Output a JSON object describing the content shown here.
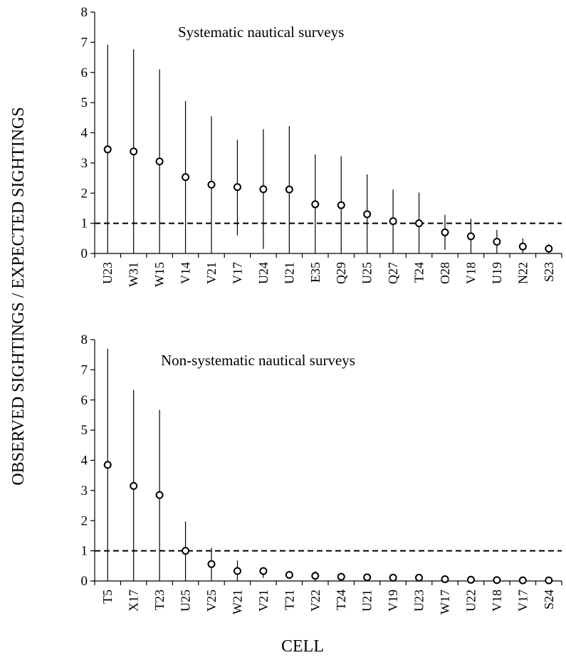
{
  "y_axis_title": "OBSERVED SIGHTINGS / EXPECTED SIGHTINGS",
  "x_axis_title": "CELL",
  "chart_data": [
    {
      "type": "scatter",
      "title": "Systematic nautical surveys",
      "ylim": [
        0,
        8
      ],
      "yticks": [
        0,
        1,
        2,
        3,
        4,
        5,
        6,
        7,
        8
      ],
      "reference_line": 1,
      "grid": false,
      "categories": [
        "U23",
        "W31",
        "W15",
        "V14",
        "V21",
        "V17",
        "U24",
        "U21",
        "E35",
        "Q29",
        "U25",
        "Q27",
        "T24",
        "O28",
        "V18",
        "U19",
        "N22",
        "S23"
      ],
      "values": [
        3.45,
        3.38,
        3.05,
        2.53,
        2.28,
        2.2,
        2.13,
        2.12,
        1.63,
        1.6,
        1.3,
        1.07,
        1.0,
        0.7,
        0.57,
        0.39,
        0.23,
        0.16
      ],
      "upper": [
        6.92,
        6.77,
        6.1,
        5.05,
        4.55,
        3.77,
        4.12,
        4.22,
        3.28,
        3.22,
        2.62,
        2.12,
        2.02,
        1.28,
        1.15,
        0.78,
        0.5,
        0.32
      ],
      "lower": [
        0,
        0,
        0,
        0,
        0,
        0.6,
        0.15,
        0,
        0,
        0,
        0,
        0,
        0,
        0.12,
        0,
        0,
        0,
        0
      ]
    },
    {
      "type": "scatter",
      "title": "Non-systematic nautical surveys",
      "ylim": [
        0,
        8
      ],
      "yticks": [
        0,
        1,
        2,
        3,
        4,
        5,
        6,
        7,
        8
      ],
      "reference_line": 1,
      "grid": false,
      "categories": [
        "T5",
        "X17",
        "T23",
        "U25",
        "V25",
        "W21",
        "V21",
        "T21",
        "V22",
        "T24",
        "U21",
        "V19",
        "U23",
        "W17",
        "U22",
        "V18",
        "V17",
        "S24"
      ],
      "values": [
        3.85,
        3.15,
        2.85,
        1.0,
        0.56,
        0.33,
        0.33,
        0.2,
        0.17,
        0.14,
        0.12,
        0.11,
        0.11,
        0.06,
        0.04,
        0.03,
        0.02,
        0.02
      ],
      "upper": [
        7.7,
        6.33,
        5.67,
        1.97,
        1.1,
        0.68,
        0.45,
        0.3,
        0.32,
        0.25,
        0.2,
        0.18,
        0.18,
        0.1,
        0.07,
        0.05,
        0.04,
        0.03
      ],
      "lower": [
        0,
        0,
        0,
        0,
        0,
        0,
        0.1,
        0.1,
        0,
        0,
        0,
        0,
        0,
        0,
        0,
        0,
        0,
        0
      ]
    }
  ]
}
